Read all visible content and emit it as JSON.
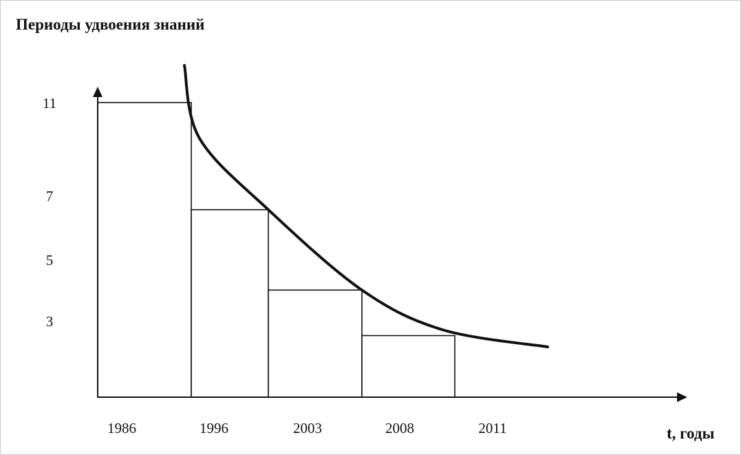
{
  "chart_data": {
    "type": "bar",
    "title": "Периоды удвоения знаний",
    "xlabel": "t, годы",
    "ylabel": "",
    "x_tick_labels": [
      "1986",
      "1996",
      "2003",
      "2008",
      "2011"
    ],
    "y_tick_labels": [
      "11",
      "7",
      "5",
      "3"
    ],
    "bars": [
      {
        "start": "1986",
        "end": "1996",
        "value": 11
      },
      {
        "start": "1996",
        "end": "2003",
        "value": 7
      },
      {
        "start": "2003",
        "end": "2008",
        "value": 4
      },
      {
        "start": "2008",
        "end": "2011",
        "value": 2.3
      }
    ],
    "trend_curve": true,
    "ylim": [
      0,
      11
    ],
    "grid": false,
    "legend": "none",
    "colors": {
      "bars_fill": "#ffffff",
      "stroke": "#111111"
    }
  }
}
